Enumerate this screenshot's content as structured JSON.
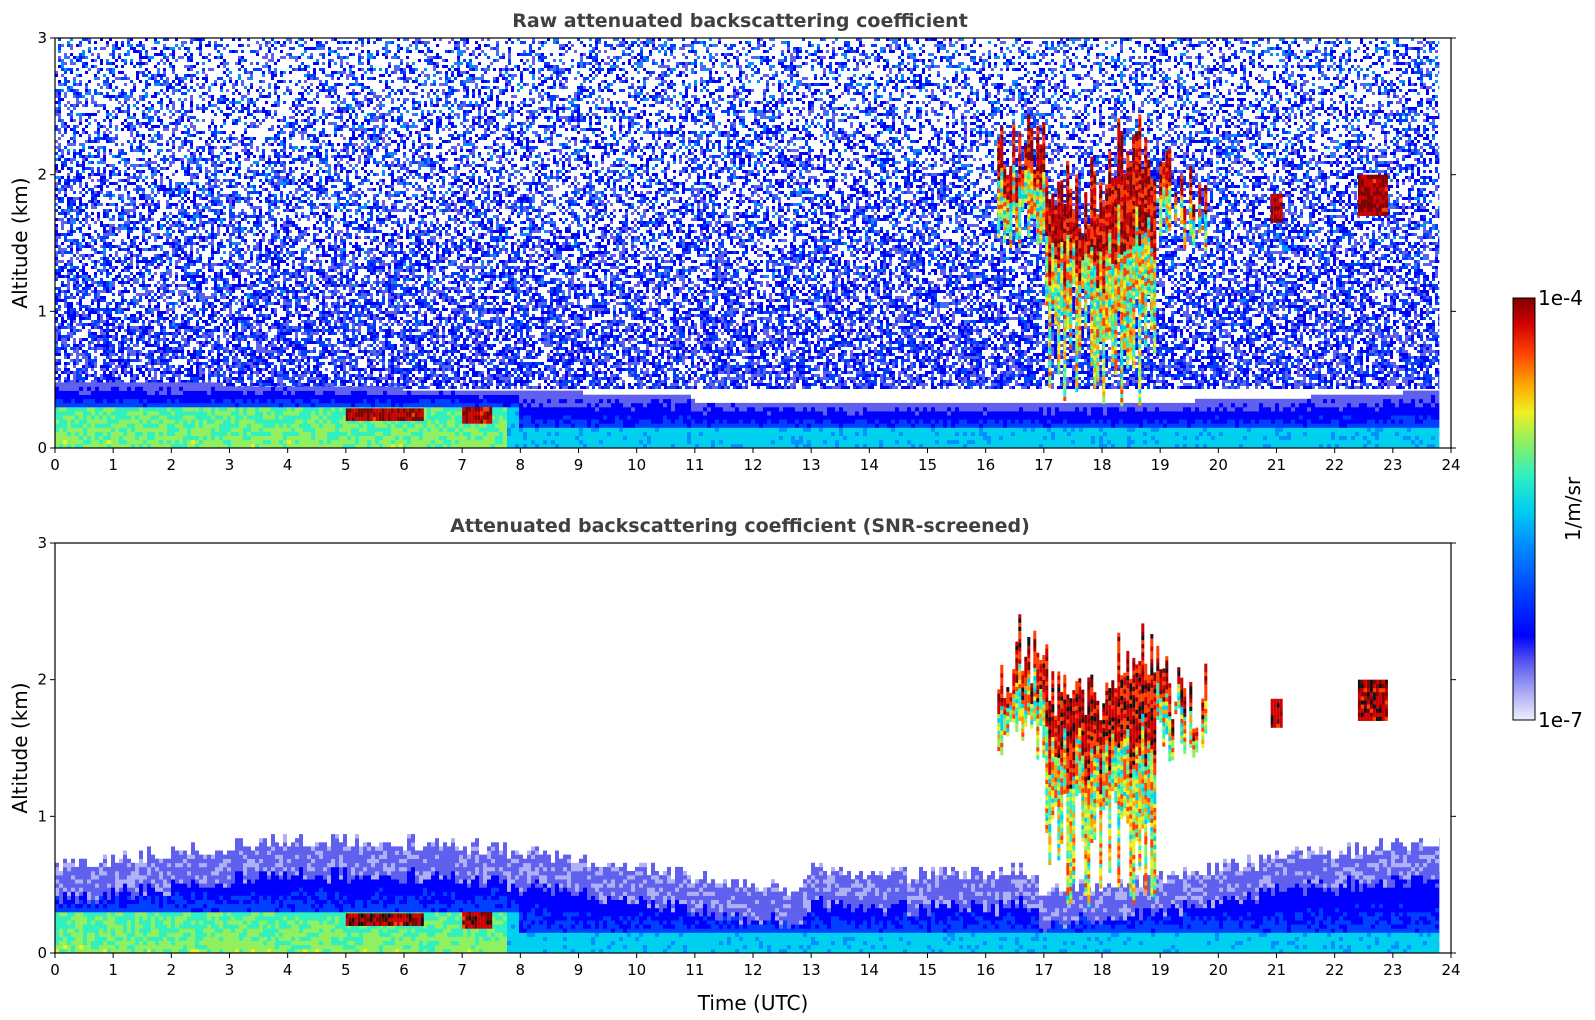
{
  "chart_data": [
    {
      "type": "heatmap",
      "title": "Raw attenuated backscattering coefficient",
      "xlabel": "",
      "ylabel": "Altitude (km)",
      "xlim": [
        0,
        24
      ],
      "ylim": [
        0,
        3
      ],
      "xticks": [
        "0",
        "1",
        "2",
        "3",
        "4",
        "5",
        "6",
        "7",
        "8",
        "9",
        "10",
        "11",
        "12",
        "13",
        "14",
        "15",
        "16",
        "17",
        "18",
        "19",
        "20",
        "21",
        "22",
        "23",
        "24"
      ],
      "yticks": [
        "0",
        "1",
        "2",
        "3"
      ],
      "regions": [
        {
          "feature": "aerosol boundary layer",
          "x": [
            0,
            23.8
          ],
          "y": [
            0,
            0.45
          ],
          "level": "medium"
        },
        {
          "feature": "high-backscatter patch",
          "x": [
            5.0,
            6.3
          ],
          "y": [
            0.2,
            0.28
          ],
          "level": "high"
        },
        {
          "feature": "high-backscatter patch",
          "x": [
            7.0,
            7.5
          ],
          "y": [
            0.18,
            0.28
          ],
          "level": "high"
        },
        {
          "feature": "cloud",
          "x": [
            16.2,
            19.8
          ],
          "y": [
            0.3,
            2.6
          ],
          "level": "high"
        },
        {
          "feature": "cloud",
          "x": [
            20.9,
            21.1
          ],
          "y": [
            1.65,
            1.85
          ],
          "level": "high"
        },
        {
          "feature": "cloud",
          "x": [
            22.4,
            22.9
          ],
          "y": [
            1.7,
            2.0
          ],
          "level": "high"
        },
        {
          "feature": "noise",
          "x": [
            0,
            23.8
          ],
          "y": [
            0.45,
            3.0
          ],
          "level": "low"
        }
      ]
    },
    {
      "type": "heatmap",
      "title": "Attenuated backscattering coefficient (SNR-screened)",
      "xlabel": "Time (UTC)",
      "ylabel": "Altitude (km)",
      "xlim": [
        0,
        24
      ],
      "ylim": [
        0,
        3
      ],
      "xticks": [
        "0",
        "1",
        "2",
        "3",
        "4",
        "5",
        "6",
        "7",
        "8",
        "9",
        "10",
        "11",
        "12",
        "13",
        "14",
        "15",
        "16",
        "17",
        "18",
        "19",
        "20",
        "21",
        "22",
        "23",
        "24"
      ],
      "yticks": [
        "0",
        "1",
        "2",
        "3"
      ],
      "regions": [
        {
          "feature": "aerosol boundary layer",
          "x": [
            0,
            23.8
          ],
          "y": [
            0,
            0.9
          ],
          "level": "medium"
        },
        {
          "feature": "high-backscatter patch",
          "x": [
            5.0,
            6.3
          ],
          "y": [
            0.2,
            0.28
          ],
          "level": "high"
        },
        {
          "feature": "high-backscatter patch",
          "x": [
            7.0,
            7.5
          ],
          "y": [
            0.18,
            0.28
          ],
          "level": "high"
        },
        {
          "feature": "cloud",
          "x": [
            16.2,
            19.8
          ],
          "y": [
            0.3,
            2.6
          ],
          "level": "high"
        },
        {
          "feature": "cloud",
          "x": [
            20.9,
            21.1
          ],
          "y": [
            1.65,
            1.85
          ],
          "level": "high"
        },
        {
          "feature": "cloud",
          "x": [
            22.4,
            22.9
          ],
          "y": [
            1.7,
            2.0
          ],
          "level": "high"
        }
      ]
    }
  ],
  "colorbar": {
    "label": "1/m/sr",
    "max_label": "1e-4",
    "min_label": "1e-7",
    "colormap": [
      "#eeeeff",
      "#b0b0f5",
      "#6060ef",
      "#0000ff",
      "#0040ff",
      "#0090ff",
      "#00d0f0",
      "#30f0c0",
      "#90f060",
      "#f0f020",
      "#ffa000",
      "#ff4000",
      "#d00000",
      "#800000"
    ]
  }
}
